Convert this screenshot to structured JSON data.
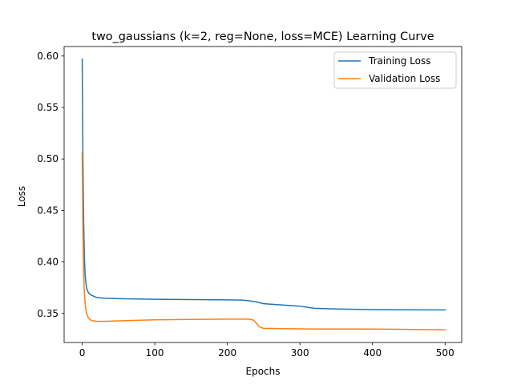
{
  "chart_data": {
    "type": "line",
    "title": "two_gaussians (k=2, reg=None, loss=MCE) Learning Curve",
    "xlabel": "Epochs",
    "ylabel": "Loss",
    "xlim": [
      -24.9,
      522.9
    ],
    "ylim": [
      0.3218,
      0.6092
    ],
    "xticks": [
      0,
      100,
      200,
      300,
      400,
      500
    ],
    "yticks": [
      0.35,
      0.4,
      0.45,
      0.5,
      0.55,
      0.6
    ],
    "ytick_labels": [
      "0.35",
      "0.40",
      "0.45",
      "0.50",
      "0.55",
      "0.60"
    ],
    "grid": false,
    "legend_position": "top-right",
    "series": [
      {
        "name": "Training Loss",
        "color": "#1f77b4",
        "x": [
          0,
          1,
          2,
          3,
          4,
          5,
          6,
          8,
          10,
          12,
          15,
          20,
          30,
          50,
          100,
          150,
          200,
          220,
          230,
          240,
          250,
          300,
          320,
          350,
          400,
          450,
          500
        ],
        "y": [
          0.597,
          0.5,
          0.44,
          0.405,
          0.388,
          0.38,
          0.375,
          0.371,
          0.369,
          0.368,
          0.367,
          0.3655,
          0.3648,
          0.3643,
          0.3638,
          0.3635,
          0.3632,
          0.363,
          0.3623,
          0.3612,
          0.3595,
          0.357,
          0.355,
          0.3543,
          0.3537,
          0.3535,
          0.3534
        ]
      },
      {
        "name": "Validation Loss",
        "color": "#ff7f0e",
        "x": [
          0,
          1,
          2,
          3,
          4,
          5,
          6,
          8,
          10,
          12,
          15,
          20,
          30,
          50,
          100,
          150,
          200,
          225,
          232,
          236,
          240,
          244,
          250,
          300,
          400,
          450,
          500
        ],
        "y": [
          0.506,
          0.43,
          0.39,
          0.37,
          0.36,
          0.354,
          0.35,
          0.3465,
          0.3445,
          0.3435,
          0.3428,
          0.3423,
          0.3423,
          0.3428,
          0.3438,
          0.3442,
          0.3445,
          0.3445,
          0.3443,
          0.3435,
          0.3405,
          0.337,
          0.3355,
          0.335,
          0.3348,
          0.3345,
          0.3342
        ]
      }
    ]
  }
}
